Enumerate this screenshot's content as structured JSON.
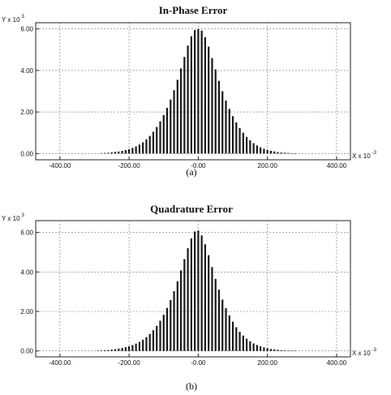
{
  "chart_data": [
    {
      "type": "bar",
      "title": "In-Phase Error",
      "ylabel": "Y x 10",
      "ylabel_exp": "3",
      "xlabel": "X x 10",
      "xlabel_exp": "-3",
      "xlim": [
        -470,
        440
      ],
      "ylim": [
        -0.3,
        6.3
      ],
      "xticks": [
        -400,
        -200,
        0,
        200,
        400
      ],
      "xtick_labels": [
        "-400.00",
        "-200.00",
        "-0.00",
        "200.00",
        "400.00"
      ],
      "yticks": [
        0,
        2,
        4,
        6
      ],
      "ytick_labels": [
        "0.00",
        "2.00",
        "4.00",
        "6.00"
      ],
      "grid": true,
      "caption": "(a)",
      "x": [
        -280,
        -270,
        -260,
        -250,
        -240,
        -230,
        -220,
        -210,
        -200,
        -190,
        -180,
        -170,
        -160,
        -150,
        -140,
        -130,
        -120,
        -110,
        -100,
        -90,
        -80,
        -70,
        -60,
        -50,
        -40,
        -30,
        -20,
        -10,
        0,
        10,
        20,
        30,
        40,
        50,
        60,
        70,
        80,
        90,
        100,
        110,
        120,
        130,
        140,
        150,
        160,
        170,
        180,
        190,
        200,
        210,
        220,
        230,
        240,
        250,
        260,
        270,
        280
      ],
      "values": [
        0.02,
        0.03,
        0.04,
        0.06,
        0.08,
        0.1,
        0.13,
        0.17,
        0.21,
        0.27,
        0.34,
        0.43,
        0.54,
        0.68,
        0.85,
        1.05,
        1.28,
        1.55,
        1.85,
        2.2,
        2.6,
        3.05,
        3.55,
        4.1,
        4.65,
        5.2,
        5.65,
        5.95,
        6.0,
        5.92,
        5.6,
        5.15,
        4.6,
        4.05,
        3.5,
        3.0,
        2.55,
        2.15,
        1.8,
        1.5,
        1.23,
        1.0,
        0.8,
        0.64,
        0.5,
        0.39,
        0.3,
        0.23,
        0.17,
        0.13,
        0.1,
        0.07,
        0.05,
        0.04,
        0.03,
        0.02,
        0.01
      ]
    },
    {
      "type": "bar",
      "title": "Quadrature Error",
      "ylabel": "Y x 10",
      "ylabel_exp": "3",
      "xlabel": "X x 10",
      "xlabel_exp": "-3",
      "xlim": [
        -470,
        440
      ],
      "ylim": [
        -0.3,
        6.6
      ],
      "xticks": [
        -400,
        -200,
        0,
        200,
        400
      ],
      "xtick_labels": [
        "-400.00",
        "-200.00",
        "-0.00",
        "200.00",
        "400.00"
      ],
      "yticks": [
        0,
        2,
        4,
        6
      ],
      "ytick_labels": [
        "0.00",
        "2.00",
        "4.00",
        "6.00"
      ],
      "grid": true,
      "caption": "(b)",
      "x": [
        -290,
        -280,
        -270,
        -260,
        -250,
        -240,
        -230,
        -220,
        -210,
        -200,
        -190,
        -180,
        -170,
        -160,
        -150,
        -140,
        -130,
        -120,
        -110,
        -100,
        -90,
        -80,
        -70,
        -60,
        -50,
        -40,
        -30,
        -20,
        -10,
        0,
        10,
        20,
        30,
        40,
        50,
        60,
        70,
        80,
        90,
        100,
        110,
        120,
        130,
        140,
        150,
        160,
        170,
        180,
        190,
        200,
        210,
        220,
        230,
        240,
        250,
        260,
        270,
        280
      ],
      "values": [
        0.02,
        0.03,
        0.04,
        0.05,
        0.07,
        0.09,
        0.12,
        0.15,
        0.19,
        0.24,
        0.3,
        0.37,
        0.46,
        0.57,
        0.7,
        0.86,
        1.05,
        1.27,
        1.53,
        1.83,
        2.18,
        2.58,
        3.03,
        3.53,
        4.08,
        4.65,
        5.2,
        5.7,
        6.05,
        6.1,
        5.85,
        5.4,
        4.85,
        4.25,
        3.65,
        3.1,
        2.6,
        2.17,
        1.8,
        1.48,
        1.2,
        0.97,
        0.78,
        0.62,
        0.49,
        0.38,
        0.3,
        0.23,
        0.18,
        0.14,
        0.1,
        0.08,
        0.06,
        0.04,
        0.03,
        0.02,
        0.02,
        0.01
      ]
    }
  ]
}
